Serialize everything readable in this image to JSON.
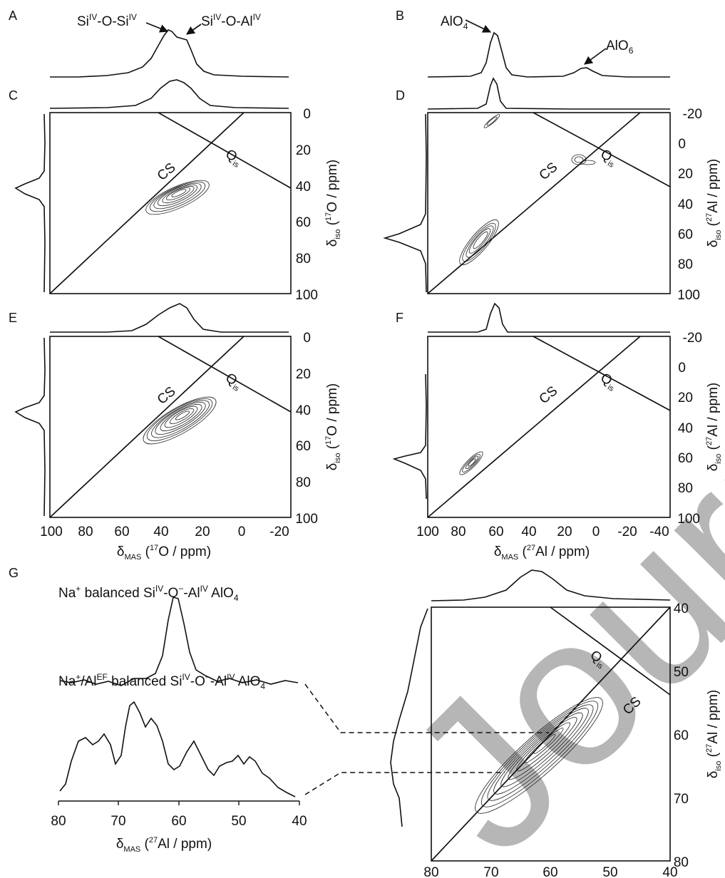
{
  "panels": [
    {
      "id": "A",
      "label": "A"
    },
    {
      "id": "B",
      "label": "B"
    },
    {
      "id": "C",
      "label": "C"
    },
    {
      "id": "D",
      "label": "D"
    },
    {
      "id": "E",
      "label": "E"
    },
    {
      "id": "F",
      "label": "F"
    },
    {
      "id": "G",
      "label": "G"
    }
  ],
  "annotations": {
    "a_sisi": "SiIV-O-SiIV",
    "a_sial": "SiIV-O-AlIV",
    "b_alo4": "AlO4",
    "b_alo6": "AlO6",
    "cs": "CS",
    "qis": "Qis",
    "g_na": "Na+ balanced SiIV-O−-AlIV AlO4",
    "g_naal": "Na+/AlEF balanced SiIV-O−-AlIV AlO4"
  },
  "axis_titles": {
    "o17_x": "δMAS (17O / ppm)",
    "o17_y": "δiso (17O / ppm)",
    "al27_x": "δMAS (27Al / ppm)",
    "al27_y": "δiso (27Al / ppm)"
  },
  "chart_data": [
    {
      "panel": "A",
      "type": "line",
      "xlabel": "",
      "ylabel": "",
      "peaks": [
        {
          "label": "SiIV-O-SiIV",
          "x": 35
        },
        {
          "label": "SiIV-O-AlIV",
          "x": 28
        }
      ]
    },
    {
      "panel": "B",
      "type": "line",
      "xlabel": "",
      "ylabel": "",
      "peaks": [
        {
          "label": "AlO4",
          "x": 60
        },
        {
          "label": "AlO6",
          "x": 2
        }
      ]
    },
    {
      "panel": "C",
      "type": "heatmap",
      "nucleus": "17O",
      "xlim": [
        100,
        -20
      ],
      "ylim": [
        0,
        100
      ],
      "xticks": [
        100,
        80,
        60,
        40,
        20,
        0,
        -20
      ],
      "yticks": [
        0,
        20,
        40,
        60,
        80,
        100
      ],
      "xlabel": "",
      "ylabel": "δiso (17O / ppm)",
      "contours": [
        {
          "x": 35,
          "y": 45
        }
      ]
    },
    {
      "panel": "D",
      "type": "heatmap",
      "nucleus": "27Al",
      "xlim": [
        100,
        -50
      ],
      "ylim": [
        -20,
        100
      ],
      "xticks": [
        100,
        80,
        60,
        40,
        20,
        0,
        -20,
        -40
      ],
      "yticks": [
        -20,
        0,
        20,
        40,
        60,
        80,
        100
      ],
      "xlabel": "",
      "ylabel": "δiso (27Al / ppm)",
      "contours": [
        {
          "x": 62,
          "y": 62
        },
        {
          "x": 12,
          "y": 10
        },
        {
          "x": 68,
          "y": -14
        }
      ]
    },
    {
      "panel": "E",
      "type": "heatmap",
      "nucleus": "17O",
      "xlim": [
        100,
        -20
      ],
      "ylim": [
        0,
        100
      ],
      "xticks": [
        100,
        80,
        60,
        40,
        20,
        0,
        -20
      ],
      "yticks": [
        0,
        20,
        40,
        60,
        80,
        100
      ],
      "xlabel": "δMAS (17O / ppm)",
      "ylabel": "δiso (17O / ppm)",
      "contours": [
        {
          "x": 34,
          "y": 45
        }
      ]
    },
    {
      "panel": "F",
      "type": "heatmap",
      "nucleus": "27Al",
      "xlim": [
        100,
        -50
      ],
      "ylim": [
        -20,
        100
      ],
      "xticks": [
        100,
        80,
        60,
        40,
        20,
        0,
        -20,
        -40
      ],
      "yticks": [
        -20,
        0,
        20,
        40,
        60,
        80,
        100
      ],
      "xlabel": "δMAS (27Al / ppm)",
      "ylabel": "δiso (27Al / ppm)",
      "contours": [
        {
          "x": 60,
          "y": 63
        }
      ]
    },
    {
      "panel": "G-left",
      "type": "line",
      "xlim": [
        80,
        40
      ],
      "xticks": [
        80,
        70,
        60,
        50,
        40
      ],
      "xlabel": "δMAS (27Al / ppm)",
      "series": [
        {
          "name": "Na+ balanced SiIV-O−-AlIV AlO4",
          "peak": 60
        },
        {
          "name": "Na+/AlEF balanced SiIV-O−-AlIV AlO4",
          "peaks": [
            75,
            67,
            64,
            57,
            48
          ]
        }
      ]
    },
    {
      "panel": "G-right",
      "type": "heatmap",
      "nucleus": "27Al",
      "xlim": [
        80,
        40
      ],
      "ylim": [
        40,
        80
      ],
      "xticks": [
        80,
        70,
        60,
        50,
        40
      ],
      "yticks": [
        40,
        50,
        60,
        70,
        80
      ],
      "xlabel": "δMAS (27Al / ppm)",
      "ylabel": "δiso (27Al / ppm)",
      "contours": [
        {
          "x": 60,
          "y": 64
        }
      ],
      "projection_slices": [
        62.5,
        68.8
      ]
    }
  ]
}
